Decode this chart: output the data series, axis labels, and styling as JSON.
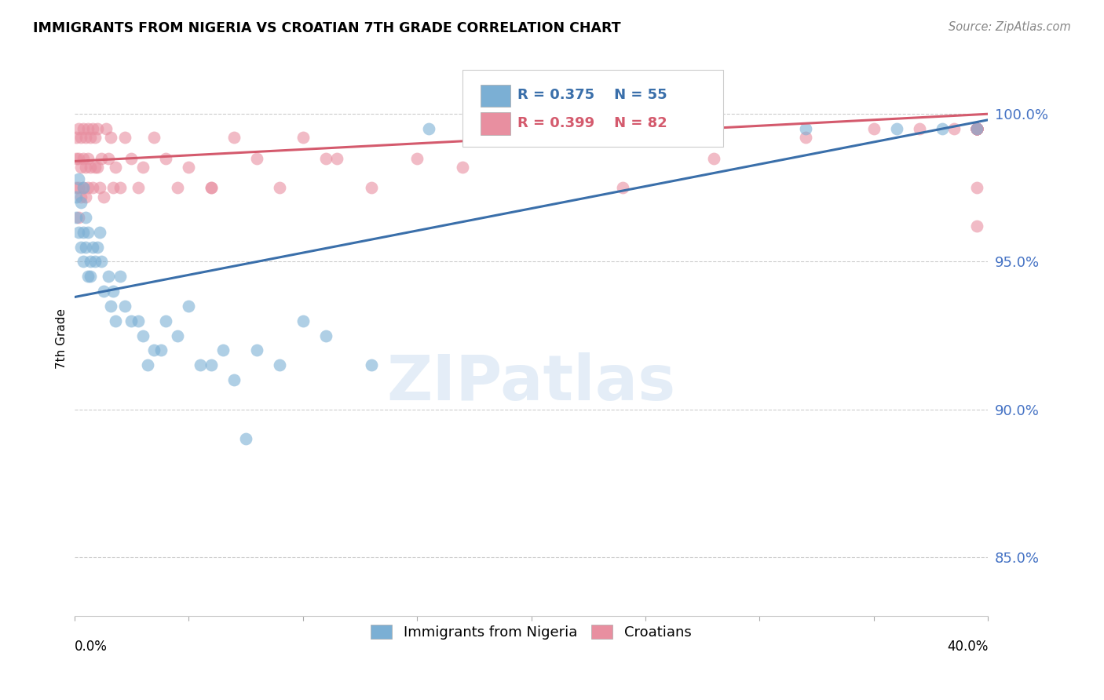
{
  "title": "IMMIGRANTS FROM NIGERIA VS CROATIAN 7TH GRADE CORRELATION CHART",
  "source": "Source: ZipAtlas.com",
  "ylabel": "7th Grade",
  "y_ticks": [
    85.0,
    90.0,
    95.0,
    100.0
  ],
  "y_tick_labels": [
    "85.0%",
    "90.0%",
    "95.0%",
    "100.0%"
  ],
  "x_min": 0.0,
  "x_max": 0.4,
  "y_min": 83.0,
  "y_max": 101.8,
  "nigeria_R": 0.375,
  "nigeria_N": 55,
  "croatian_R": 0.399,
  "croatian_N": 82,
  "nigeria_color": "#7bafd4",
  "croatian_color": "#e88fa0",
  "nigeria_line_color": "#3a6faa",
  "croatian_line_color": "#d45a6d",
  "nig_x": [
    0.001,
    0.001,
    0.002,
    0.002,
    0.003,
    0.003,
    0.004,
    0.004,
    0.004,
    0.005,
    0.005,
    0.006,
    0.006,
    0.007,
    0.007,
    0.008,
    0.009,
    0.01,
    0.011,
    0.012,
    0.013,
    0.015,
    0.016,
    0.017,
    0.018,
    0.02,
    0.022,
    0.025,
    0.028,
    0.03,
    0.032,
    0.035,
    0.038,
    0.04,
    0.045,
    0.05,
    0.055,
    0.06,
    0.065,
    0.07,
    0.075,
    0.08,
    0.09,
    0.1,
    0.11,
    0.13,
    0.155,
    0.175,
    0.2,
    0.24,
    0.28,
    0.32,
    0.36,
    0.38,
    0.395
  ],
  "nig_y": [
    96.5,
    97.2,
    96.0,
    97.8,
    95.5,
    97.0,
    96.0,
    97.5,
    95.0,
    96.5,
    95.5,
    96.0,
    94.5,
    95.0,
    94.5,
    95.5,
    95.0,
    95.5,
    96.0,
    95.0,
    94.0,
    94.5,
    93.5,
    94.0,
    93.0,
    94.5,
    93.5,
    93.0,
    93.0,
    92.5,
    91.5,
    92.0,
    92.0,
    93.0,
    92.5,
    93.5,
    91.5,
    91.5,
    92.0,
    91.0,
    89.0,
    92.0,
    91.5,
    93.0,
    92.5,
    91.5,
    99.5,
    99.5,
    99.5,
    99.5,
    99.5,
    99.5,
    99.5,
    99.5,
    99.5
  ],
  "cro_x": [
    0.001,
    0.001,
    0.001,
    0.002,
    0.002,
    0.002,
    0.002,
    0.003,
    0.003,
    0.003,
    0.004,
    0.004,
    0.004,
    0.005,
    0.005,
    0.005,
    0.006,
    0.006,
    0.006,
    0.007,
    0.007,
    0.008,
    0.008,
    0.009,
    0.009,
    0.01,
    0.01,
    0.011,
    0.012,
    0.013,
    0.014,
    0.015,
    0.016,
    0.017,
    0.018,
    0.02,
    0.022,
    0.025,
    0.028,
    0.03,
    0.035,
    0.04,
    0.045,
    0.05,
    0.06,
    0.07,
    0.08,
    0.09,
    0.1,
    0.115,
    0.13,
    0.15,
    0.17,
    0.2,
    0.24,
    0.28,
    0.32,
    0.35,
    0.37,
    0.385,
    0.11,
    0.06,
    0.395,
    0.395,
    0.395,
    0.395,
    0.395,
    0.395,
    0.395,
    0.395,
    0.395,
    0.395,
    0.395,
    0.395,
    0.395,
    0.395,
    0.395,
    0.395,
    0.395,
    0.395,
    0.395,
    0.395
  ],
  "cro_y": [
    99.2,
    98.5,
    97.5,
    99.5,
    98.5,
    97.5,
    96.5,
    99.2,
    98.2,
    97.2,
    99.5,
    98.5,
    97.5,
    99.2,
    98.2,
    97.2,
    99.5,
    98.5,
    97.5,
    99.2,
    98.2,
    99.5,
    97.5,
    99.2,
    98.2,
    99.5,
    98.2,
    97.5,
    98.5,
    97.2,
    99.5,
    98.5,
    99.2,
    97.5,
    98.2,
    97.5,
    99.2,
    98.5,
    97.5,
    98.2,
    99.2,
    98.5,
    97.5,
    98.2,
    97.5,
    99.2,
    98.5,
    97.5,
    99.2,
    98.5,
    97.5,
    98.5,
    98.2,
    99.2,
    97.5,
    98.5,
    99.2,
    99.5,
    99.5,
    99.5,
    98.5,
    97.5,
    99.5,
    99.5,
    99.5,
    99.5,
    99.5,
    99.5,
    99.5,
    99.5,
    99.5,
    99.5,
    99.5,
    99.5,
    99.5,
    99.5,
    99.5,
    99.5,
    99.5,
    99.5,
    96.2,
    97.5
  ],
  "nig_line_x": [
    0.0,
    0.4
  ],
  "nig_line_y": [
    93.8,
    99.8
  ],
  "cro_line_x": [
    0.0,
    0.4
  ],
  "cro_line_y": [
    98.4,
    100.0
  ]
}
